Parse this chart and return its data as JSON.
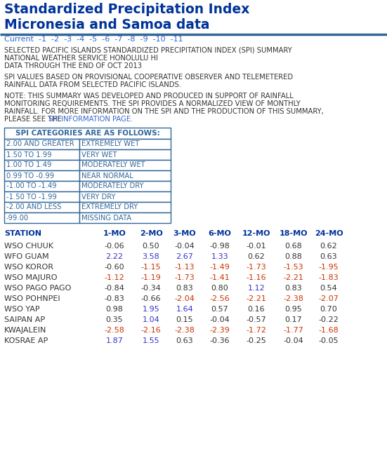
{
  "title_line1": "Standardized Precipitation Index",
  "title_line2": "Micronesia and Samoa data",
  "nav_text": "Current  -1  -2  -3  -4  -5  -6  -7  -8  -9  -10  -11",
  "body_text_1": [
    "SELECTED PACIFIC ISLANDS STANDARDIZED PRECIPITATION INDEX (SPI) SUMMARY",
    "NATIONAL WEATHER SERVICE HONOLULU HI",
    "DATA THROUGH THE END OF OCT 2013"
  ],
  "body_text_2": [
    "SPI VALUES BASED ON PROVISIONAL COOPERATIVE OBSERVER AND TELEMETERED",
    "RAINFALL DATA FROM SELECTED PACIFIC ISLANDS."
  ],
  "body_text_3": [
    "NOTE: THIS SUMMARY WAS DEVELOPED AND PRODUCED IN SUPPORT OF RAINFALL",
    "MONITORING REQUIREMENTS. THE SPI PROVIDES A NORMALIZED VIEW OF MONTHLY",
    "RAINFALL. FOR MORE INFORMATION ON THE SPI AND THE PRODUCTION OF THIS SUMMARY,",
    "PLEASE SEE THE "
  ],
  "link_text": "SPI INFORMATION PAGE.",
  "spi_categories_header": "SPI CATEGORIES ARE AS FOLLOWS:",
  "spi_categories": [
    [
      "2.00 AND GREATER",
      "EXTREMELY WET"
    ],
    [
      "1.50 TO 1.99",
      "VERY WET"
    ],
    [
      "1.00 TO 1.49",
      "MODERATELY WET"
    ],
    [
      "0.99 TO -0.99",
      "NEAR NORMAL"
    ],
    [
      "-1.00 TO -1.49",
      "MODERATELY DRY"
    ],
    [
      "-1.50 TO -1.99",
      "VERY DRY"
    ],
    [
      "-2.00 AND LESS",
      "EXTREMELY DRY"
    ],
    [
      "-99.00",
      "MISSING DATA"
    ]
  ],
  "col_headers": [
    "STATION",
    "1-MO",
    "2-MO",
    "3-MO",
    "6-MO",
    "12-MO",
    "18-MO",
    "24-MO"
  ],
  "stations": [
    "WSO CHUUK",
    "WFO GUAM",
    "WSO KOROR",
    "WSO MAJURO",
    "WSO PAGO PAGO",
    "WSO POHNPEI",
    "WSO YAP",
    "SAIPAN AP",
    "KWAJALEIN",
    "KOSRAE AP"
  ],
  "values": [
    [
      -0.06,
      0.5,
      -0.04,
      -0.98,
      -0.01,
      0.68,
      0.62
    ],
    [
      2.22,
      3.58,
      2.67,
      1.33,
      0.62,
      0.88,
      0.63
    ],
    [
      -0.6,
      -1.15,
      -1.13,
      -1.49,
      -1.73,
      -1.53,
      -1.95
    ],
    [
      -1.12,
      -1.19,
      -1.73,
      -1.41,
      -1.16,
      -2.21,
      -1.83
    ],
    [
      -0.84,
      -0.34,
      0.83,
      0.8,
      1.12,
      0.83,
      0.54
    ],
    [
      -0.83,
      -0.66,
      -2.04,
      -2.56,
      -2.21,
      -2.38,
      -2.07
    ],
    [
      0.98,
      1.95,
      1.64,
      0.57,
      0.16,
      0.95,
      0.7
    ],
    [
      0.35,
      1.04,
      0.15,
      -0.04,
      -0.57,
      0.17,
      -0.22
    ],
    [
      -2.58,
      -2.16,
      -2.38,
      -2.39,
      -1.72,
      -1.77,
      -1.68
    ],
    [
      1.87,
      1.55,
      0.63,
      -0.36,
      -0.25,
      -0.04,
      -0.05
    ]
  ],
  "title_color": "#003399",
  "nav_color": "#3366cc",
  "body_color": "#333333",
  "header_color": "#003399",
  "link_color": "#3366cc",
  "table_border_color": "#336699",
  "background_color": "#ffffff",
  "normal_color": "#333333",
  "wet_color": "#3333cc",
  "dry_color": "#cc3300",
  "very_dry_color": "#cc3300"
}
